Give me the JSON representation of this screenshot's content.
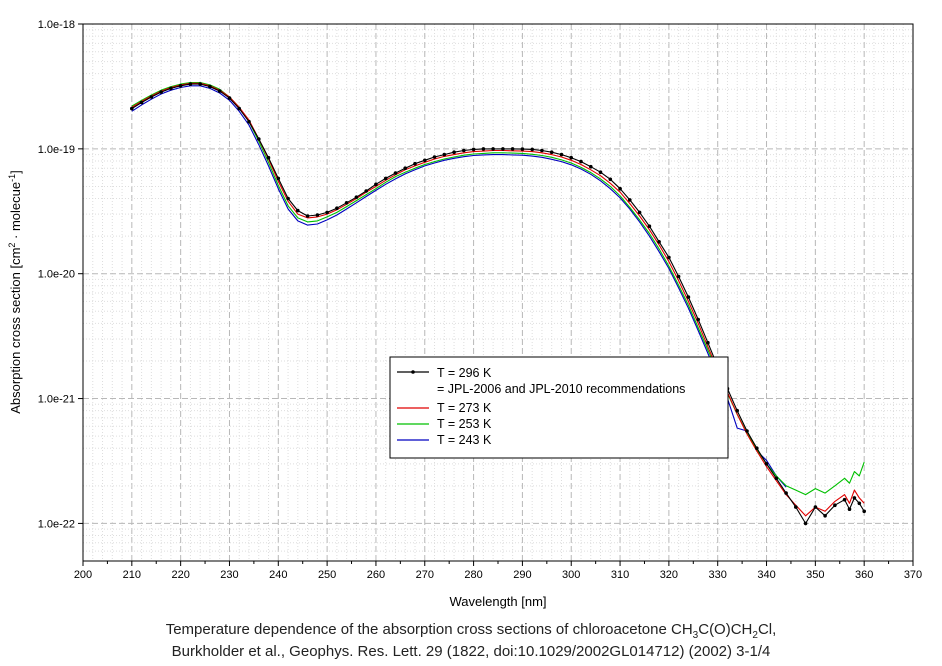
{
  "chart_data": {
    "type": "line",
    "xlabel": "Wavelength [nm]",
    "ylabel": {
      "base": "Absorption cross section [cm",
      "exp1": "2",
      "mid": " · molecue",
      "exp2": "-1",
      "end": "]"
    },
    "xlim": [
      200,
      370
    ],
    "ylim": [
      5e-23,
      1e-18
    ],
    "yscale": "log",
    "xticks": [
      "200",
      "210",
      "220",
      "230",
      "240",
      "250",
      "260",
      "270",
      "280",
      "290",
      "300",
      "310",
      "320",
      "330",
      "340",
      "350",
      "360",
      "370"
    ],
    "yticks": [
      {
        "value": 1e-18,
        "label": "1.0e-18"
      },
      {
        "value": 1e-19,
        "label": "1.0e-19"
      },
      {
        "value": 1e-20,
        "label": "1.0e-20"
      },
      {
        "value": 1e-21,
        "label": "1.0e-21"
      },
      {
        "value": 1e-22,
        "label": "1.0e-22"
      }
    ],
    "grid": true,
    "legend_position": "center",
    "series": [
      {
        "name": "T = 296 K",
        "name_extra": "= JPL-2006 and JPL-2010 recommendations",
        "color": "#000000",
        "markers": true,
        "x": [
          210,
          212,
          214,
          216,
          218,
          220,
          222,
          224,
          226,
          228,
          230,
          232,
          234,
          236,
          238,
          240,
          242,
          244,
          246,
          248,
          250,
          252,
          254,
          256,
          258,
          260,
          262,
          264,
          266,
          268,
          270,
          272,
          274,
          276,
          278,
          280,
          282,
          284,
          286,
          288,
          290,
          292,
          294,
          296,
          298,
          300,
          302,
          304,
          306,
          308,
          310,
          312,
          314,
          316,
          318,
          320,
          322,
          324,
          326,
          328,
          330,
          332,
          334,
          336,
          338,
          340,
          342,
          344,
          346,
          348,
          350,
          352,
          354,
          356,
          357,
          358,
          359,
          360
        ],
        "y": [
          2.1e-19,
          2.35e-19,
          2.6e-19,
          2.85e-19,
          3.05e-19,
          3.2e-19,
          3.3e-19,
          3.3e-19,
          3.15e-19,
          2.9e-19,
          2.55e-19,
          2.1e-19,
          1.65e-19,
          1.2e-19,
          8.5e-20,
          5.8e-20,
          4e-20,
          3.2e-20,
          2.9e-20,
          2.95e-20,
          3.1e-20,
          3.35e-20,
          3.7e-20,
          4.1e-20,
          4.6e-20,
          5.2e-20,
          5.8e-20,
          6.4e-20,
          7e-20,
          7.6e-20,
          8.1e-20,
          8.6e-20,
          9e-20,
          9.4e-20,
          9.7e-20,
          9.9e-20,
          1e-19,
          1e-19,
          1e-19,
          1e-19,
          9.95e-20,
          9.9e-20,
          9.7e-20,
          9.4e-20,
          9e-20,
          8.5e-20,
          7.9e-20,
          7.2e-20,
          6.5e-20,
          5.7e-20,
          4.8e-20,
          3.9e-20,
          3.1e-20,
          2.4e-20,
          1.8e-20,
          1.35e-20,
          9.5e-21,
          6.5e-21,
          4.3e-21,
          2.8e-21,
          1.8e-21,
          1.2e-21,
          8e-22,
          5.5e-22,
          4e-22,
          3e-22,
          2.3e-22,
          1.75e-22,
          1.35e-22,
          1e-22,
          1.35e-22,
          1.15e-22,
          1.4e-22,
          1.55e-22,
          1.3e-22,
          1.6e-22,
          1.45e-22,
          1.25e-22
        ]
      },
      {
        "name": "T = 273 K",
        "color": "#e00000",
        "markers": false,
        "x": [
          210,
          212,
          214,
          216,
          218,
          220,
          222,
          224,
          226,
          228,
          230,
          232,
          234,
          236,
          238,
          240,
          242,
          244,
          246,
          248,
          250,
          252,
          254,
          256,
          258,
          260,
          262,
          264,
          266,
          268,
          270,
          272,
          274,
          276,
          278,
          280,
          282,
          284,
          286,
          288,
          290,
          292,
          294,
          296,
          298,
          300,
          302,
          304,
          306,
          308,
          310,
          312,
          314,
          316,
          318,
          320,
          322,
          324,
          326,
          328,
          330,
          332,
          334,
          336,
          338,
          340,
          342,
          344,
          346,
          348,
          350,
          352,
          354,
          356,
          357,
          358,
          359,
          360
        ],
        "y": [
          2.15e-19,
          2.4e-19,
          2.65e-19,
          2.9e-19,
          3.1e-19,
          3.25e-19,
          3.35e-19,
          3.35e-19,
          3.2e-19,
          2.95e-19,
          2.6e-19,
          2.15e-19,
          1.7e-19,
          1.2e-19,
          8.3e-20,
          5.5e-20,
          3.8e-20,
          3e-20,
          2.8e-20,
          2.85e-20,
          3e-20,
          3.25e-20,
          3.6e-20,
          4e-20,
          4.5e-20,
          5e-20,
          5.6e-20,
          6.2e-20,
          6.8e-20,
          7.3e-20,
          7.8e-20,
          8.3e-20,
          8.7e-20,
          9e-20,
          9.3e-20,
          9.5e-20,
          9.6e-20,
          9.7e-20,
          9.7e-20,
          9.65e-20,
          9.6e-20,
          9.5e-20,
          9.3e-20,
          9e-20,
          8.6e-20,
          8.1e-20,
          7.5e-20,
          6.8e-20,
          6.1e-20,
          5.3e-20,
          4.5e-20,
          3.65e-20,
          2.9e-20,
          2.25e-20,
          1.7e-20,
          1.25e-20,
          8.8e-21,
          6e-21,
          4e-21,
          2.6e-21,
          1.7e-21,
          1.12e-21,
          7.5e-22,
          5.2e-22,
          3.8e-22,
          2.85e-22,
          2.2e-22,
          1.7e-22,
          1.4e-22,
          1.15e-22,
          1.35e-22,
          1.25e-22,
          1.5e-22,
          1.7e-22,
          1.45e-22,
          1.85e-22,
          1.6e-22,
          1.45e-22
        ]
      },
      {
        "name": "T = 253 K",
        "color": "#00c000",
        "markers": false,
        "x": [
          210,
          212,
          214,
          216,
          218,
          220,
          222,
          224,
          226,
          228,
          230,
          232,
          234,
          236,
          238,
          240,
          242,
          244,
          246,
          248,
          250,
          252,
          254,
          256,
          258,
          260,
          262,
          264,
          266,
          268,
          270,
          272,
          274,
          276,
          278,
          280,
          282,
          284,
          286,
          288,
          290,
          292,
          294,
          296,
          298,
          300,
          302,
          304,
          306,
          308,
          310,
          312,
          314,
          316,
          318,
          320,
          322,
          324,
          326,
          328,
          330,
          332,
          334,
          336,
          338,
          340,
          342,
          344,
          346,
          348,
          350,
          352,
          354,
          356,
          357,
          358,
          359,
          360
        ],
        "y": [
          2.2e-19,
          2.45e-19,
          2.7e-19,
          2.95e-19,
          3.15e-19,
          3.3e-19,
          3.4e-19,
          3.4e-19,
          3.25e-19,
          3e-19,
          2.6e-19,
          2.15e-19,
          1.65e-19,
          1.15e-19,
          7.8e-20,
          5.1e-20,
          3.5e-20,
          2.8e-20,
          2.6e-20,
          2.65e-20,
          2.85e-20,
          3.1e-20,
          3.45e-20,
          3.85e-20,
          4.3e-20,
          4.8e-20,
          5.4e-20,
          6e-20,
          6.5e-20,
          7e-20,
          7.5e-20,
          7.9e-20,
          8.3e-20,
          8.6e-20,
          8.9e-20,
          9.1e-20,
          9.2e-20,
          9.3e-20,
          9.3e-20,
          9.25e-20,
          9.2e-20,
          9.05e-20,
          8.85e-20,
          8.55e-20,
          8.15e-20,
          7.7e-20,
          7.1e-20,
          6.45e-20,
          5.75e-20,
          5e-20,
          4.2e-20,
          3.4e-20,
          2.7e-20,
          2.1e-20,
          1.58e-20,
          1.15e-20,
          8.1e-21,
          5.6e-21,
          3.7e-21,
          2.45e-21,
          1.62e-21,
          1.1e-21,
          7.5e-22,
          5.3e-22,
          3.9e-22,
          3e-22,
          2.4e-22,
          2e-22,
          1.85e-22,
          1.7e-22,
          1.9e-22,
          1.75e-22,
          2e-22,
          2.3e-22,
          2.1e-22,
          2.6e-22,
          2.4e-22,
          3.1e-22
        ]
      },
      {
        "name": "T = 243 K",
        "color": "#0000c0",
        "markers": false,
        "x": [
          210,
          212,
          214,
          216,
          218,
          220,
          222,
          224,
          226,
          228,
          230,
          232,
          234,
          236,
          238,
          240,
          242,
          244,
          246,
          248,
          250,
          252,
          254,
          256,
          258,
          260,
          262,
          264,
          266,
          268,
          270,
          272,
          274,
          276,
          278,
          280,
          282,
          284,
          286,
          288,
          290,
          292,
          294,
          296,
          298,
          300,
          302,
          304,
          306,
          308,
          310,
          312,
          314,
          316,
          318,
          320,
          322,
          324,
          326,
          328,
          330,
          332,
          334,
          336,
          338,
          340,
          342,
          344
        ],
        "y": [
          2e-19,
          2.25e-19,
          2.5e-19,
          2.75e-19,
          2.95e-19,
          3.1e-19,
          3.2e-19,
          3.2e-19,
          3.05e-19,
          2.8e-19,
          2.45e-19,
          2e-19,
          1.55e-19,
          1.08e-19,
          7.3e-20,
          4.8e-20,
          3.3e-20,
          2.65e-20,
          2.45e-20,
          2.5e-20,
          2.7e-20,
          2.95e-20,
          3.3e-20,
          3.7e-20,
          4.15e-20,
          4.65e-20,
          5.2e-20,
          5.75e-20,
          6.3e-20,
          6.8e-20,
          7.3e-20,
          7.7e-20,
          8.1e-20,
          8.4e-20,
          8.65e-20,
          8.85e-20,
          8.95e-20,
          9e-20,
          9e-20,
          8.95e-20,
          8.9e-20,
          8.75e-20,
          8.55e-20,
          8.25e-20,
          7.9e-20,
          7.45e-20,
          6.9e-20,
          6.25e-20,
          5.55e-20,
          4.8e-20,
          4.05e-20,
          3.3e-20,
          2.6e-20,
          2e-20,
          1.5e-20,
          1.1e-20,
          7.7e-21,
          5.3e-21,
          3.5e-21,
          2.3e-21,
          1.5e-21,
          1e-21,
          5.8e-22,
          5.5e-22,
          3.8e-22,
          3.2e-22,
          2.4e-22,
          1.95e-22
        ]
      }
    ]
  },
  "caption": {
    "line1_prefix": "Temperature dependence of the absorption cross sections of chloroacetone CH",
    "line1_sub1": "3",
    "line1_mid": "C(O)CH",
    "line1_sub2": "2",
    "line1_suffix": "Cl,",
    "line2": "Burkholder et al., Geophys. Res. Lett. 29 (1822, doi:10.1029/2002GL014712) (2002) 3-1/4"
  }
}
